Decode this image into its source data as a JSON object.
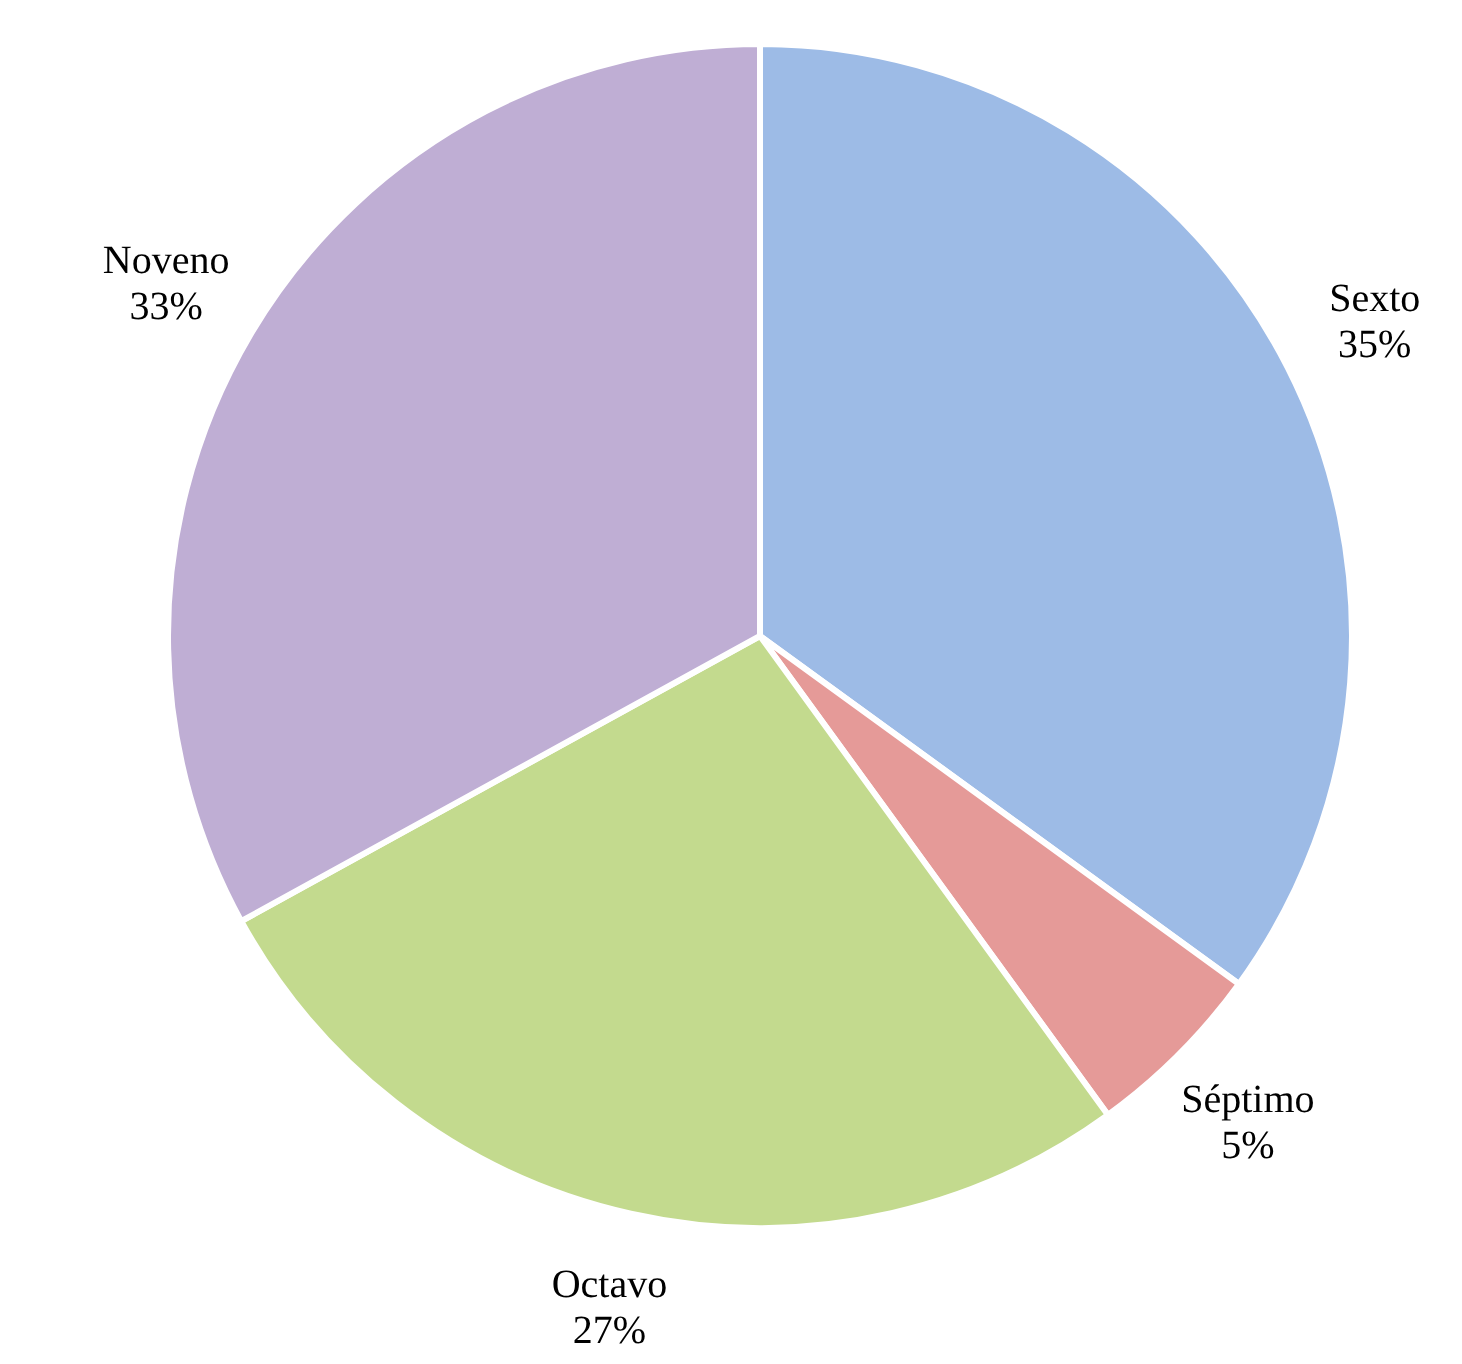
{
  "chart_data": {
    "type": "pie",
    "categories": [
      "Sexto",
      "Séptimo",
      "Octavo",
      "Noveno"
    ],
    "values": [
      35,
      5,
      27,
      33
    ],
    "value_labels": [
      "35%",
      "5%",
      "27%",
      "33%"
    ],
    "colors": [
      "#9dbbe6",
      "#e59a98",
      "#c3da8e",
      "#bfaed4"
    ],
    "legend": false
  }
}
